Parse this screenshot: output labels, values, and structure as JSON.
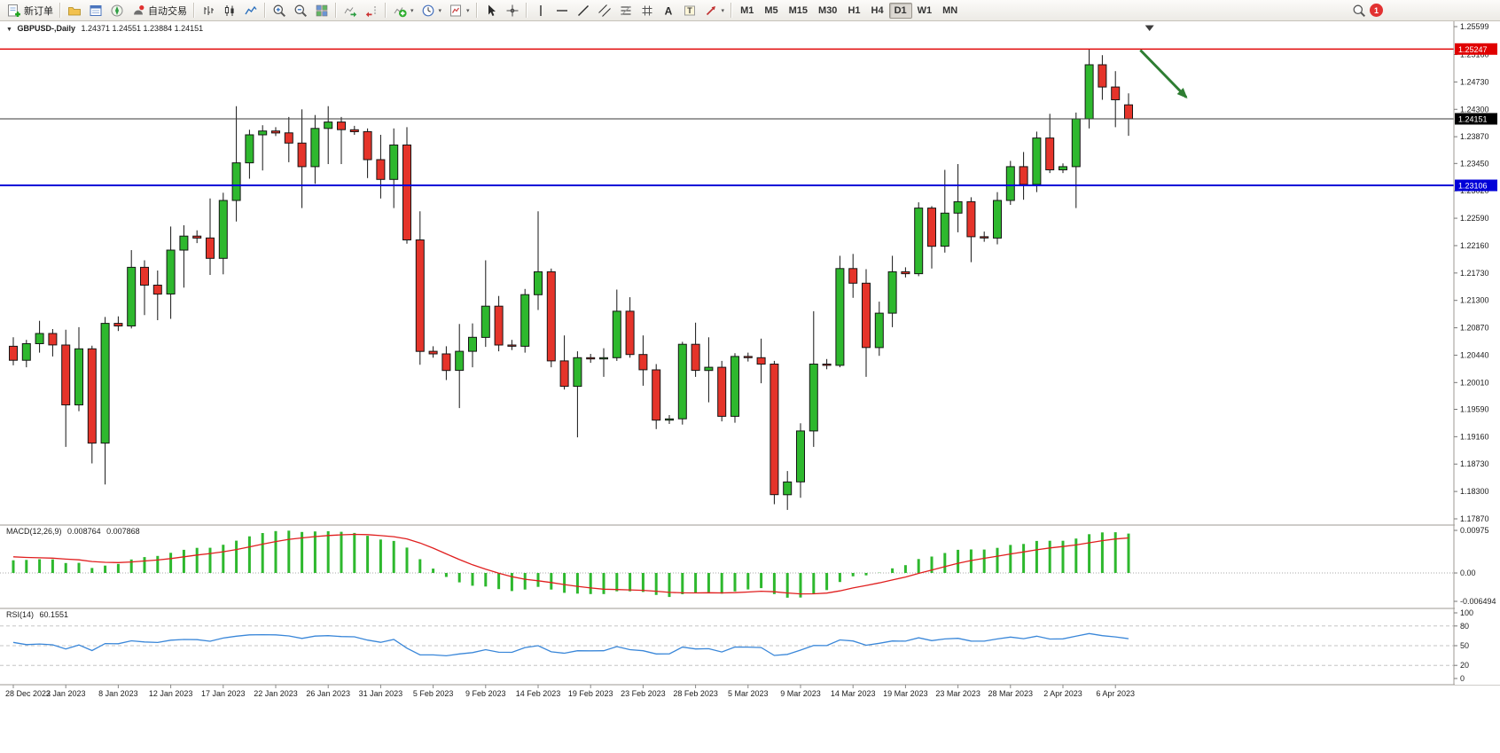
{
  "toolbar": {
    "new_order_label": "新订单",
    "autotrading_label": "自动交易",
    "groups": [
      {
        "name": "order",
        "items": [
          {
            "name": "new-order-button",
            "icon": "new-order",
            "label": "新订单"
          }
        ]
      },
      {
        "name": "windows",
        "items": [
          {
            "name": "market-watch-button",
            "icon": "folder"
          },
          {
            "name": "profiles-button",
            "icon": "profiles"
          },
          {
            "name": "navigator-button",
            "icon": "navigator"
          },
          {
            "name": "algo-trading-button",
            "icon": "autotrade",
            "label": "自动交易"
          }
        ]
      },
      {
        "name": "chart-mode",
        "items": [
          {
            "name": "bar-chart-button",
            "icon": "bars"
          },
          {
            "name": "candlestick-chart-button",
            "icon": "candles"
          },
          {
            "name": "line-chart-button",
            "icon": "line"
          }
        ]
      },
      {
        "name": "zoom",
        "items": [
          {
            "name": "zoom-in-button",
            "icon": "zoom-in"
          },
          {
            "name": "zoom-out-button",
            "icon": "zoom-out"
          },
          {
            "name": "tile-windows-button",
            "icon": "tile"
          }
        ]
      },
      {
        "name": "scroll",
        "items": [
          {
            "name": "auto-scroll-button",
            "icon": "autoscroll"
          },
          {
            "name": "chart-shift-button",
            "icon": "shift"
          }
        ]
      },
      {
        "name": "objects",
        "items": [
          {
            "name": "indicators-button",
            "icon": "indicator",
            "dropdown": true
          },
          {
            "name": "period-button",
            "icon": "clock",
            "dropdown": true
          },
          {
            "name": "template-button",
            "icon": "template",
            "dropdown": true
          }
        ]
      },
      {
        "name": "pointer",
        "items": [
          {
            "name": "cursor-button",
            "icon": "cursor"
          },
          {
            "name": "crosshair-button",
            "icon": "crosshair"
          }
        ]
      },
      {
        "name": "draw",
        "items": [
          {
            "name": "vertical-line-button",
            "icon": "vline"
          },
          {
            "name": "horizontal-line-button",
            "icon": "hline"
          },
          {
            "name": "trendline-button",
            "icon": "tline"
          },
          {
            "name": "equidistant-channel-button",
            "icon": "channel"
          },
          {
            "name": "fibonacci-button",
            "icon": "fibo"
          },
          {
            "name": "shapes-button",
            "icon": "grid"
          },
          {
            "name": "text-button",
            "icon": "textA"
          },
          {
            "name": "text-label-button",
            "icon": "textT"
          },
          {
            "name": "arrows-button",
            "icon": "arrow",
            "dropdown": true
          }
        ]
      },
      {
        "name": "timeframes",
        "items": [
          {
            "name": "tf-m1-button",
            "label": "M1"
          },
          {
            "name": "tf-m5-button",
            "label": "M5"
          },
          {
            "name": "tf-m15-button",
            "label": "M15"
          },
          {
            "name": "tf-m30-button",
            "label": "M30"
          },
          {
            "name": "tf-h1-button",
            "label": "H1"
          },
          {
            "name": "tf-h4-button",
            "label": "H4"
          },
          {
            "name": "tf-d1-button",
            "label": "D1",
            "active": true
          },
          {
            "name": "tf-w1-button",
            "label": "W1"
          },
          {
            "name": "tf-mn-button",
            "label": "MN"
          }
        ]
      }
    ],
    "right": [
      {
        "name": "search-button",
        "icon": "search"
      },
      {
        "name": "notifications-badge",
        "badge": "1"
      }
    ]
  },
  "chart": {
    "title": {
      "collapse_glyph": "▼",
      "symbol": "GBPUSD-,Daily",
      "ohlc": "1.24371 1.24551 1.23884 1.24151"
    }
  },
  "chart_data": {
    "type": "candlestick",
    "symbol": "GBPUSD-",
    "timeframe": "Daily",
    "colors": {
      "up": "#2eb82e",
      "down": "#e5342a",
      "wick": "#151515"
    },
    "y_axis": {
      "max": 1.25599,
      "min": 1.1787,
      "ticks": [
        "1.25599",
        "1.25160",
        "1.24730",
        "1.24300",
        "1.23870",
        "1.23450",
        "1.23020",
        "1.22590",
        "1.22160",
        "1.21730",
        "1.21300",
        "1.20870",
        "1.20440",
        "1.20010",
        "1.19590",
        "1.19160",
        "1.18730",
        "1.18300",
        "1.17870"
      ]
    },
    "x_labels": [
      "28 Dec 2022",
      "3 Jan 2023",
      "8 Jan 2023",
      "12 Jan 2023",
      "17 Jan 2023",
      "22 Jan 2023",
      "26 Jan 2023",
      "31 Jan 2023",
      "5 Feb 2023",
      "9 Feb 2023",
      "14 Feb 2023",
      "19 Feb 2023",
      "23 Feb 2023",
      "28 Feb 2023",
      "5 Mar 2023",
      "9 Mar 2023",
      "14 Mar 2023",
      "19 Mar 2023",
      "23 Mar 2023",
      "28 Mar 2023",
      "2 Apr 2023",
      "6 Apr 2023"
    ],
    "x_label_step": 4,
    "shift_marker_index": 86.6,
    "candles_ohlc": [
      [
        1.2058,
        1.2072,
        1.2028,
        1.2036
      ],
      [
        1.2036,
        1.2068,
        1.2025,
        1.2062
      ],
      [
        1.2062,
        1.2098,
        1.2048,
        1.2078
      ],
      [
        1.2078,
        1.2085,
        1.2042,
        1.206
      ],
      [
        1.206,
        1.2084,
        1.19,
        1.1966
      ],
      [
        1.1966,
        1.2088,
        1.1956,
        1.2054
      ],
      [
        1.2054,
        1.2059,
        1.1874,
        1.1906
      ],
      [
        1.1906,
        1.2104,
        1.1841,
        1.2094
      ],
      [
        1.2094,
        1.2105,
        1.2082,
        1.209
      ],
      [
        1.209,
        1.2209,
        1.2086,
        1.2182
      ],
      [
        1.2182,
        1.2193,
        1.2107,
        1.2154
      ],
      [
        1.2154,
        1.2177,
        1.2099,
        1.214
      ],
      [
        1.214,
        1.2246,
        1.2101,
        1.2209
      ],
      [
        1.2209,
        1.2248,
        1.215,
        1.2231
      ],
      [
        1.2231,
        1.224,
        1.222,
        1.2228
      ],
      [
        1.2228,
        1.229,
        1.217,
        1.2196
      ],
      [
        1.2196,
        1.2299,
        1.2171,
        1.2287
      ],
      [
        1.2287,
        1.2435,
        1.2254,
        1.2346
      ],
      [
        1.2346,
        1.2398,
        1.2321,
        1.239
      ],
      [
        1.239,
        1.2405,
        1.2334,
        1.2396
      ],
      [
        1.2396,
        1.2402,
        1.2388,
        1.2393
      ],
      [
        1.2393,
        1.2418,
        1.2347,
        1.2377
      ],
      [
        1.2377,
        1.243,
        1.2275,
        1.234
      ],
      [
        1.234,
        1.2421,
        1.2313,
        1.24
      ],
      [
        1.24,
        1.2435,
        1.2344,
        1.241
      ],
      [
        1.241,
        1.2418,
        1.2344,
        1.2398
      ],
      [
        1.2398,
        1.2404,
        1.239,
        1.2395
      ],
      [
        1.2395,
        1.24,
        1.2322,
        1.2351
      ],
      [
        1.2351,
        1.239,
        1.229,
        1.232
      ],
      [
        1.232,
        1.24,
        1.2275,
        1.2374
      ],
      [
        1.2374,
        1.2402,
        1.2219,
        1.2225
      ],
      [
        1.2225,
        1.227,
        1.2029,
        1.205
      ],
      [
        1.205,
        1.2058,
        1.204,
        1.2046
      ],
      [
        1.2046,
        1.2058,
        1.2005,
        1.202
      ],
      [
        1.202,
        1.2093,
        1.1961,
        1.205
      ],
      [
        1.205,
        1.2094,
        1.2025,
        1.2072
      ],
      [
        1.2072,
        1.2193,
        1.2057,
        1.2121
      ],
      [
        1.2121,
        1.2137,
        1.205,
        1.206
      ],
      [
        1.206,
        1.2068,
        1.2052,
        1.2058
      ],
      [
        1.2058,
        1.2148,
        1.2048,
        1.2139
      ],
      [
        1.2139,
        1.227,
        1.2115,
        1.2175
      ],
      [
        1.2175,
        1.218,
        1.2025,
        1.2035
      ],
      [
        1.2035,
        1.2075,
        1.199,
        1.1995
      ],
      [
        1.1995,
        1.205,
        1.1915,
        1.204
      ],
      [
        1.204,
        1.2046,
        1.2032,
        1.2038
      ],
      [
        1.2038,
        1.2055,
        1.201,
        1.204
      ],
      [
        1.204,
        1.2147,
        1.2035,
        1.2113
      ],
      [
        1.2113,
        1.2135,
        1.204,
        1.2045
      ],
      [
        1.2045,
        1.2075,
        1.1996,
        1.2021
      ],
      [
        1.2021,
        1.203,
        1.1928,
        1.1942
      ],
      [
        1.1942,
        1.195,
        1.1936,
        1.1944
      ],
      [
        1.1944,
        1.2065,
        1.1935,
        1.2061
      ],
      [
        1.2061,
        1.2095,
        1.201,
        1.202
      ],
      [
        1.202,
        1.2072,
        1.197,
        1.2025
      ],
      [
        1.2025,
        1.2035,
        1.194,
        1.1948
      ],
      [
        1.1948,
        1.2047,
        1.1938,
        1.2042
      ],
      [
        1.2042,
        1.2048,
        1.2034,
        1.204
      ],
      [
        1.204,
        1.207,
        1.2,
        1.203
      ],
      [
        1.203,
        1.2035,
        1.181,
        1.1825
      ],
      [
        1.1825,
        1.1862,
        1.1801,
        1.1845
      ],
      [
        1.1845,
        1.1937,
        1.182,
        1.1925
      ],
      [
        1.1925,
        1.2113,
        1.19,
        1.203
      ],
      [
        1.203,
        1.2038,
        1.2022,
        1.2028
      ],
      [
        1.2028,
        1.22,
        1.2025,
        1.218
      ],
      [
        1.218,
        1.2203,
        1.2134,
        1.2157
      ],
      [
        1.2157,
        1.2179,
        1.201,
        1.2056
      ],
      [
        1.2056,
        1.2128,
        1.2043,
        1.211
      ],
      [
        1.211,
        1.22,
        1.2088,
        1.2175
      ],
      [
        1.2175,
        1.2182,
        1.2166,
        1.2172
      ],
      [
        1.2172,
        1.2284,
        1.2168,
        1.2275
      ],
      [
        1.2275,
        1.2278,
        1.218,
        1.2215
      ],
      [
        1.2215,
        1.2335,
        1.2205,
        1.2267
      ],
      [
        1.2267,
        1.2344,
        1.2237,
        1.2285
      ],
      [
        1.2285,
        1.2292,
        1.219,
        1.223
      ],
      [
        1.223,
        1.2238,
        1.2222,
        1.2228
      ],
      [
        1.2228,
        1.23,
        1.2218,
        1.2287
      ],
      [
        1.2287,
        1.2349,
        1.228,
        1.234
      ],
      [
        1.234,
        1.2363,
        1.2288,
        1.2312
      ],
      [
        1.2312,
        1.2395,
        1.23,
        1.2385
      ],
      [
        1.2385,
        1.2423,
        1.233,
        1.2335
      ],
      [
        1.2335,
        1.2345,
        1.233,
        1.234
      ],
      [
        1.234,
        1.2425,
        1.2275,
        1.2415
      ],
      [
        1.2415,
        1.25247,
        1.24,
        1.25
      ],
      [
        1.25,
        1.2515,
        1.2445,
        1.2465
      ],
      [
        1.2465,
        1.249,
        1.2402,
        1.2445
      ],
      [
        1.24371,
        1.24551,
        1.23884,
        1.24151
      ]
    ],
    "hlines": [
      {
        "name": "resistance",
        "value": 1.25247,
        "label": "1.25247",
        "color": "#e00000",
        "width": 1.4
      },
      {
        "name": "bid",
        "value": 1.24151,
        "label": "1.24151",
        "color": "#3a3a3a",
        "width": 1,
        "label_bg": "#000000"
      },
      {
        "name": "support",
        "value": 1.23106,
        "label": "1.23106",
        "color": "#0000d8",
        "width": 2
      }
    ],
    "annotations": [
      {
        "type": "arrow",
        "name": "down-trend-arrow",
        "color": "#2e7d32",
        "from": {
          "index": 85.9,
          "price": 1.2523
        },
        "to": {
          "index": 89.4,
          "price": 1.2449
        }
      }
    ],
    "indicators": [
      {
        "type": "MACD",
        "params": [
          12,
          26,
          9
        ],
        "label": "MACD(12,26,9)",
        "value_main": "0.008764",
        "value_signal": "0.007868",
        "scale": {
          "max": 0.00975,
          "min": -0.006494,
          "labels": [
            "0.00975",
            "0.00",
            "-0.006494"
          ]
        },
        "colors": {
          "histogram": "#2eb82e",
          "signal": "#e01f1f"
        },
        "derived_from": "candles_ohlc"
      },
      {
        "type": "RSI",
        "params": [
          14
        ],
        "label": "RSI(14)",
        "value": "60.1551",
        "scale": {
          "max": 100,
          "min": 0,
          "labels": [
            "100",
            "80",
            "50",
            "20",
            "0"
          ],
          "levels": [
            80,
            50,
            20
          ]
        },
        "color": "#3a87d9",
        "derived_from": "candles_ohlc"
      }
    ]
  }
}
